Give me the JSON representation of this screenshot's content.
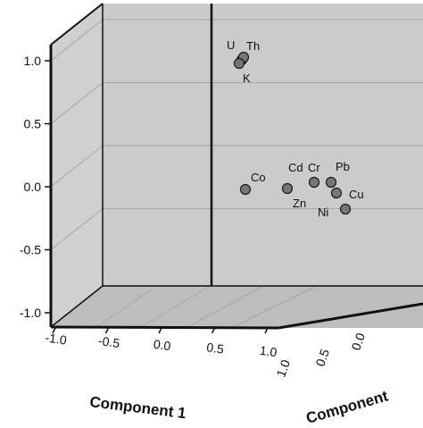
{
  "chart_data": {
    "type": "scatter",
    "projection": "3d",
    "axis_titles": {
      "x": "Component 1",
      "y": "Component",
      "z": ""
    },
    "z_ticks": [
      "1.0",
      "0.5",
      "0.0",
      "-0.5",
      "-1.0"
    ],
    "x_ticks": [
      "-1.0",
      "-0.5",
      "0.0",
      "0.5",
      "1.0"
    ],
    "y_ticks": [
      "1.0",
      "0.5",
      "0.0"
    ],
    "zlim": [
      -1.0,
      1.0
    ],
    "xlim": [
      -1.0,
      1.0
    ],
    "grid": true,
    "colors": {
      "wall": "#cccccc",
      "floor": "#bdbdbd",
      "marker_fill": "#777777",
      "marker_stroke": "#1a1a1a",
      "edge": "#111111",
      "grid": "#a6a6a6"
    },
    "points": [
      {
        "label": "U",
        "z": 1.0
      },
      {
        "label": "Th",
        "z": 1.0
      },
      {
        "label": "K",
        "z": 0.97
      },
      {
        "label": "Co",
        "z": -0.03
      },
      {
        "label": "Cd",
        "z": 0.05
      },
      {
        "label": "Cr",
        "z": 0.05
      },
      {
        "label": "Pb",
        "z": 0.05
      },
      {
        "label": "Zn",
        "z": -0.02
      },
      {
        "label": "Cu",
        "z": -0.06
      },
      {
        "label": "Ni",
        "z": -0.15
      }
    ]
  }
}
